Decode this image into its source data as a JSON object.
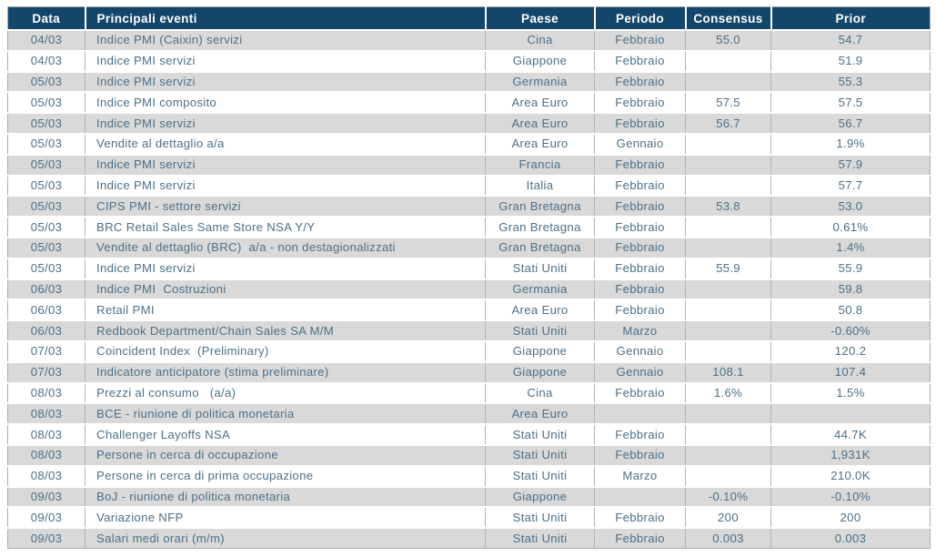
{
  "colors": {
    "header_bg": "#14466B",
    "header_text": "#FFFFFF",
    "body_text": "#4E7087",
    "row_shaded": "#D9D9D9",
    "row_plain": "#FFFFFF",
    "grid_line": "#B3B3B3"
  },
  "table": {
    "columns": [
      {
        "key": "data",
        "label": "Data"
      },
      {
        "key": "event",
        "label": "Principali eventi"
      },
      {
        "key": "country",
        "label": "Paese"
      },
      {
        "key": "period",
        "label": "Periodo"
      },
      {
        "key": "consensus",
        "label": "Consensus"
      },
      {
        "key": "prior",
        "label": "Prior"
      }
    ],
    "rows": [
      [
        "04/03",
        "Indice PMI (Caixin) servizi",
        "Cina",
        "Febbraio",
        "55.0",
        "54.7"
      ],
      [
        "04/03",
        "Indice PMI servizi",
        "Giappone",
        "Febbraio",
        "",
        "51.9"
      ],
      [
        "05/03",
        "Indice PMI servizi",
        "Germania",
        "Febbraio",
        "",
        "55.3"
      ],
      [
        "05/03",
        "Indice PMI composito",
        "Area Euro",
        "Febbraio",
        "57.5",
        "57.5"
      ],
      [
        "05/03",
        "Indice PMI servizi",
        "Area Euro",
        "Febbraio",
        "56.7",
        "56.7"
      ],
      [
        "05/03",
        "Vendite al dettaglio a/a",
        "Area Euro",
        "Gennaio",
        "",
        "1.9%"
      ],
      [
        "05/03",
        "Indice PMI servizi",
        "Francia",
        "Febbraio",
        "",
        "57.9"
      ],
      [
        "05/03",
        "Indice PMI servizi",
        "Italia",
        "Febbraio",
        "",
        "57.7"
      ],
      [
        "05/03",
        "CIPS PMI - settore servizi",
        "Gran Bretagna",
        "Febbraio",
        "53.8",
        "53.0"
      ],
      [
        "05/03",
        "BRC Retail Sales Same Store NSA Y/Y",
        "Gran Bretagna",
        "Febbraio",
        "",
        "0.61%"
      ],
      [
        "05/03",
        "Vendite al dettaglio (BRC)  a/a - non destagionalizzati",
        "Gran Bretagna",
        "Febbraio",
        "",
        "1.4%"
      ],
      [
        "05/03",
        "Indice PMI servizi",
        "Stati Uniti",
        "Febbraio",
        "55.9",
        "55.9"
      ],
      [
        "06/03",
        "Indice PMI  Costruzioni",
        "Germania",
        "Febbraio",
        "",
        "59.8"
      ],
      [
        "06/03",
        "Retail PMI",
        "Area Euro",
        "Febbraio",
        "",
        "50.8"
      ],
      [
        "06/03",
        "Redbook Department/Chain Sales SA M/M",
        "Stati Uniti",
        "Marzo",
        "",
        "-0.60%"
      ],
      [
        "07/03",
        "Coincident Index  (Preliminary)",
        "Giappone",
        "Gennaio",
        "",
        "120.2"
      ],
      [
        "07/03",
        "Indicatore anticipatore (stima preliminare)",
        "Giappone",
        "Gennaio",
        "108.1",
        "107.4"
      ],
      [
        "08/03",
        "Prezzi al consumo   (a/a)",
        "Cina",
        "Febbraio",
        "1.6%",
        "1.5%"
      ],
      [
        "08/03",
        "BCE - riunione di politica monetaria",
        "Area Euro",
        "",
        "",
        ""
      ],
      [
        "08/03",
        "Challenger Layoffs NSA",
        "Stati Uniti",
        "Febbraio",
        "",
        "44.7K"
      ],
      [
        "08/03",
        "Persone in cerca di occupazione",
        "Stati Uniti",
        "Febbraio",
        "",
        "1,931K"
      ],
      [
        "08/03",
        "Persone in cerca di prima occupazione",
        "Stati Uniti",
        "Marzo",
        "",
        "210.0K"
      ],
      [
        "09/03",
        "BoJ - riunione di politica monetaria",
        "Giappone",
        "",
        "-0.10%",
        "-0.10%"
      ],
      [
        "09/03",
        "Variazione NFP",
        "Stati Uniti",
        "Febbraio",
        "200",
        "200"
      ],
      [
        "09/03",
        "Salari medi orari (m/m)",
        "Stati Uniti",
        "Febbraio",
        "0.003",
        "0.003"
      ]
    ]
  }
}
